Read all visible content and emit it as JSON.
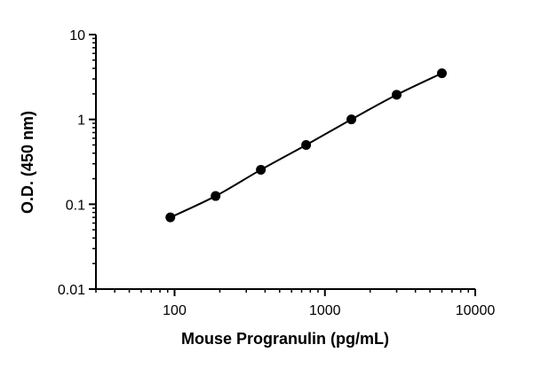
{
  "chart_data": {
    "type": "scatter",
    "title": "",
    "xlabel": "Mouse Progranulin (pg/mL)",
    "ylabel": "O.D. (450 nm)",
    "xscale": "log",
    "yscale": "log",
    "xlim": [
      30,
      10000
    ],
    "ylim": [
      0.01,
      10
    ],
    "xticks": [
      100,
      1000,
      10000
    ],
    "xtick_labels": [
      "100",
      "1000",
      "10000"
    ],
    "yticks": [
      0.01,
      0.1,
      1,
      10
    ],
    "ytick_labels": [
      "0.01",
      "0.1",
      "1",
      "10"
    ],
    "grid": false,
    "legend": "none",
    "fit_curve": true,
    "marker_color": "#000000",
    "series": [
      {
        "x": [
          93.75,
          187.5,
          375,
          750,
          1500,
          3000,
          6000
        ],
        "y": [
          0.07,
          0.125,
          0.255,
          0.5,
          1.0,
          1.95,
          3.5
        ]
      }
    ]
  }
}
